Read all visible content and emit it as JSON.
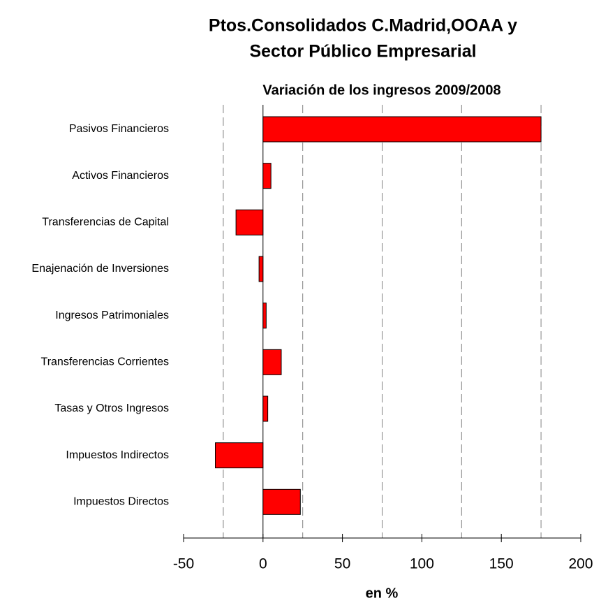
{
  "chart_data": {
    "type": "bar",
    "orientation": "horizontal",
    "title": [
      "Ptos.Consolidados C.Madrid,OOAA y",
      "Sector Público Empresarial"
    ],
    "subtitle": "Variación de los ingresos 2009/2008",
    "x_label": "en %",
    "categories": [
      "Pasivos Financieros",
      "Activos Financieros",
      "Transferencias de Capital",
      "Enajenación de Inversiones",
      "Ingresos Patrimoniales",
      "Transferencias Corrientes",
      "Tasas y Otros Ingresos",
      "Impuestos Indirectos",
      "Impuestos Directos"
    ],
    "values": [
      175,
      5,
      -17,
      -2.5,
      2,
      11.5,
      3,
      -30,
      23.5
    ],
    "color": "#ff0000",
    "xlim": [
      -50,
      200
    ],
    "xticks": [
      -50,
      0,
      50,
      100,
      150,
      200
    ],
    "grid_ticks": [
      -25,
      25,
      75,
      125,
      175
    ],
    "grid": true
  }
}
